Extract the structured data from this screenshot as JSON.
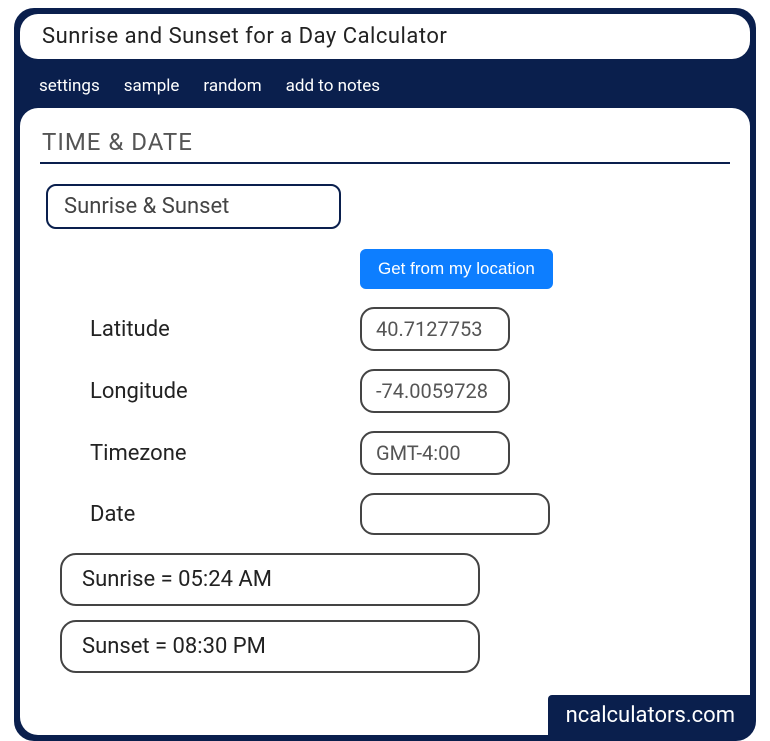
{
  "title": "Sunrise and Sunset for a Day Calculator",
  "tabs": {
    "settings": "settings",
    "sample": "sample",
    "random": "random",
    "add_to_notes": "add to notes"
  },
  "section_header": "TIME & DATE",
  "sub_tab": "Sunrise & Sunset",
  "get_location_label": "Get from my location",
  "fields": {
    "latitude": {
      "label": "Latitude",
      "value": "40.7127753"
    },
    "longitude": {
      "label": "Longitude",
      "value": "-74.0059728"
    },
    "timezone": {
      "label": "Timezone",
      "value": "GMT-4:00"
    },
    "date": {
      "label": "Date",
      "value": ""
    }
  },
  "results": {
    "sunrise": "Sunrise  =  05:24 AM",
    "sunset": "Sunset  =  08:30 PM"
  },
  "watermark": "ncalculators.com",
  "colors": {
    "primary": "#0a1f4d",
    "accent": "#0d7eff",
    "text": "#222222",
    "muted": "#555555",
    "background": "#ffffff"
  }
}
